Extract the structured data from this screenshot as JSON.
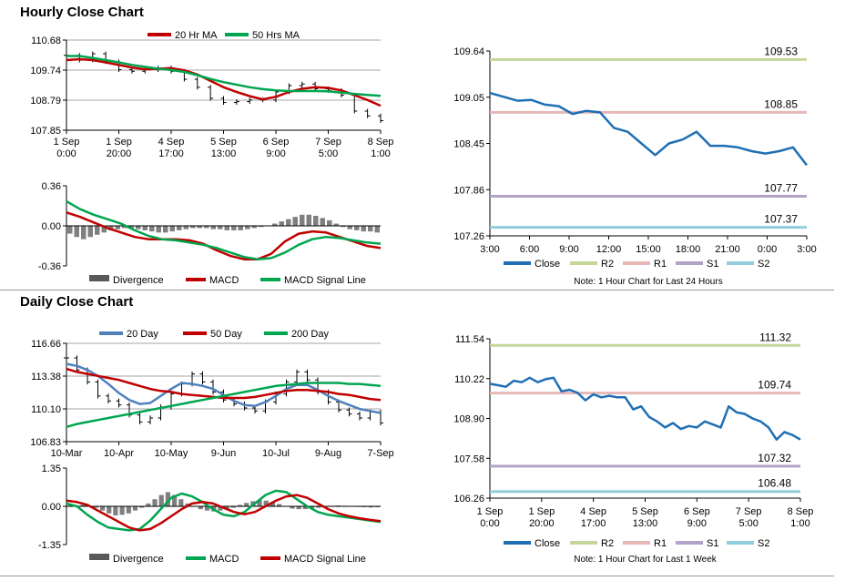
{
  "titles": {
    "hourly": "Hourly Close Chart",
    "daily": "Daily Close Chart"
  },
  "chart_data": [
    {
      "id": "hourly-price",
      "type": "line",
      "ylim": [
        107.85,
        110.68
      ],
      "yticks": [
        "110.68",
        "109.74",
        "108.79",
        "107.85"
      ],
      "xticks": [
        [
          "1 Sep",
          "0:00"
        ],
        [
          "1 Sep",
          "20:00"
        ],
        [
          "4 Sep",
          "17:00"
        ],
        [
          "5 Sep",
          "13:00"
        ],
        [
          "6 Sep",
          "9:00"
        ],
        [
          "7 Sep",
          "5:00"
        ],
        [
          "8 Sep",
          "1:00"
        ]
      ],
      "legend": [
        "20 Hr MA",
        "50 Hrs MA"
      ],
      "series": [
        {
          "name": "20 Hr MA",
          "color": "#c00000",
          "values": [
            110.05,
            110.08,
            110.05,
            109.98,
            109.9,
            109.82,
            109.76,
            109.78,
            109.8,
            109.73,
            109.6,
            109.4,
            109.2,
            109.05,
            108.92,
            108.82,
            108.9,
            109.05,
            109.15,
            109.2,
            109.18,
            109.1,
            108.95,
            108.8,
            108.62
          ]
        },
        {
          "name": "50 Hrs MA",
          "color": "#00a550",
          "values": [
            110.18,
            110.18,
            110.12,
            110.05,
            109.98,
            109.9,
            109.84,
            109.78,
            109.74,
            109.68,
            109.58,
            109.46,
            109.36,
            109.28,
            109.2,
            109.14,
            109.1,
            109.08,
            109.08,
            109.08,
            109.07,
            109.03,
            108.99,
            108.96,
            108.93
          ]
        },
        {
          "name": "Close",
          "color": "#000000",
          "values": [
            110.2,
            110.05,
            110.25,
            110.0,
            109.75,
            109.7,
            109.75,
            109.8,
            109.7,
            109.45,
            109.2,
            108.85,
            108.72,
            108.75,
            108.8,
            108.8,
            109.05,
            109.25,
            109.3,
            109.15,
            109.1,
            108.95,
            108.45,
            108.3,
            108.15
          ]
        }
      ]
    },
    {
      "id": "hourly-macd",
      "type": "bar",
      "ylim": [
        -0.36,
        0.36
      ],
      "yticks": [
        "0.36",
        "0.00",
        "-0.36"
      ],
      "legend": [
        "Divergence",
        "MACD",
        "MACD Signal Line"
      ],
      "divergence": [
        -0.07,
        -0.1,
        -0.12,
        -0.1,
        -0.08,
        -0.06,
        -0.04,
        -0.03,
        -0.02,
        -0.02,
        -0.03,
        -0.04,
        -0.05,
        -0.06,
        -0.06,
        -0.05,
        -0.04,
        -0.03,
        -0.02,
        -0.02,
        -0.02,
        -0.03,
        -0.03,
        -0.04,
        -0.04,
        -0.04,
        -0.03,
        -0.02,
        -0.01,
        0.0,
        0.02,
        0.04,
        0.06,
        0.08,
        0.1,
        0.1,
        0.09,
        0.07,
        0.05,
        0.02,
        -0.01,
        -0.03,
        -0.04,
        -0.05,
        -0.05,
        -0.06
      ],
      "series": [
        {
          "name": "MACD",
          "color": "#c00000",
          "values": [
            0.12,
            0.08,
            0.03,
            -0.02,
            -0.06,
            -0.1,
            -0.12,
            -0.12,
            -0.12,
            -0.13,
            -0.16,
            -0.22,
            -0.27,
            -0.3,
            -0.3,
            -0.25,
            -0.14,
            -0.07,
            -0.05,
            -0.06,
            -0.1,
            -0.14,
            -0.18,
            -0.2
          ]
        },
        {
          "name": "MACD Signal Line",
          "color": "#00a550",
          "values": [
            0.22,
            0.15,
            0.1,
            0.06,
            0.02,
            -0.04,
            -0.09,
            -0.12,
            -0.13,
            -0.15,
            -0.17,
            -0.2,
            -0.24,
            -0.28,
            -0.3,
            -0.29,
            -0.24,
            -0.17,
            -0.12,
            -0.1,
            -0.11,
            -0.13,
            -0.15,
            -0.16
          ]
        }
      ]
    },
    {
      "id": "hourly-24h",
      "type": "line",
      "ylim": [
        107.26,
        109.64
      ],
      "yticks": [
        "109.64",
        "109.05",
        "108.45",
        "107.86",
        "107.26"
      ],
      "xticks": [
        "3:00",
        "6:00",
        "9:00",
        "12:00",
        "15:00",
        "18:00",
        "21:00",
        "0:00",
        "3:00"
      ],
      "levels": [
        {
          "name": "R2",
          "value": 109.53,
          "label": "109.53",
          "color": "#c4d79b"
        },
        {
          "name": "R1",
          "value": 108.85,
          "label": "108.85",
          "color": "#e6b9b8"
        },
        {
          "name": "S1",
          "value": 107.77,
          "label": "107.77",
          "color": "#b3a2c7"
        },
        {
          "name": "S2",
          "value": 107.37,
          "label": "107.37",
          "color": "#93cddd"
        }
      ],
      "series": [
        {
          "name": "Close",
          "color": "#1f6fb4",
          "values": [
            109.1,
            109.05,
            109.0,
            109.01,
            108.95,
            108.93,
            108.83,
            108.87,
            108.85,
            108.65,
            108.6,
            108.45,
            108.3,
            108.45,
            108.5,
            108.6,
            108.42,
            108.42,
            108.4,
            108.35,
            108.32,
            108.35,
            108.4,
            108.17
          ]
        }
      ],
      "legend": [
        "Close",
        "R2",
        "R1",
        "S1",
        "S2"
      ],
      "note": "Note: 1 Hour Chart for Last 24 Hours"
    },
    {
      "id": "daily-price",
      "type": "line",
      "ylim": [
        106.83,
        116.66
      ],
      "yticks": [
        "116.66",
        "113.38",
        "110.10",
        "106.83"
      ],
      "xticks": [
        "10-Mar",
        "10-Apr",
        "10-May",
        "9-Jun",
        "10-Jul",
        "9-Aug",
        "7-Sep"
      ],
      "legend": [
        "20 Day",
        "50 Day",
        "200 Day"
      ],
      "series": [
        {
          "name": "20 Day",
          "color": "#4f81bd",
          "values": [
            114.6,
            114.4,
            114.0,
            113.4,
            112.6,
            111.7,
            111.0,
            110.6,
            110.7,
            111.4,
            112.1,
            112.7,
            112.6,
            112.4,
            112.1,
            111.5,
            110.9,
            110.5,
            110.4,
            110.8,
            111.4,
            112.1,
            112.5,
            112.5,
            112.0,
            111.4,
            110.9,
            110.5,
            110.1,
            109.9,
            109.7
          ]
        },
        {
          "name": "50 Day",
          "color": "#c00000",
          "values": [
            114.1,
            113.8,
            113.6,
            113.4,
            113.2,
            113.0,
            112.7,
            112.4,
            112.1,
            111.9,
            111.8,
            111.6,
            111.5,
            111.4,
            111.3,
            111.2,
            111.2,
            111.2,
            111.3,
            111.5,
            111.7,
            111.9,
            112.0,
            112.0,
            111.9,
            111.8,
            111.6,
            111.5,
            111.3,
            111.1,
            111.0
          ]
        },
        {
          "name": "200 Day",
          "color": "#00a550",
          "values": [
            108.3,
            108.6,
            108.8,
            109.0,
            109.2,
            109.4,
            109.6,
            109.8,
            110.0,
            110.2,
            110.4,
            110.6,
            110.8,
            111.0,
            111.2,
            111.4,
            111.6,
            111.8,
            112.0,
            112.2,
            112.4,
            112.5,
            112.6,
            112.7,
            112.7,
            112.7,
            112.7,
            112.6,
            112.6,
            112.5,
            112.4
          ]
        },
        {
          "name": "Close",
          "color": "#000000",
          "values": [
            115.2,
            114.0,
            112.8,
            111.4,
            110.9,
            110.5,
            109.5,
            108.8,
            109.2,
            110.3,
            111.6,
            112.6,
            113.6,
            112.8,
            111.8,
            111.0,
            110.6,
            110.2,
            109.9,
            110.8,
            111.6,
            112.8,
            113.8,
            113.0,
            111.8,
            110.8,
            110.0,
            109.6,
            109.2,
            109.8,
            108.7
          ]
        }
      ]
    },
    {
      "id": "daily-macd",
      "type": "bar",
      "ylim": [
        -1.35,
        1.35
      ],
      "yticks": [
        "1.35",
        "0.00",
        "-1.35"
      ],
      "legend": [
        "Divergence",
        "MACD",
        "MACD Signal Line"
      ],
      "divergence": [
        0.02,
        0.03,
        0.05,
        0.02,
        -0.05,
        -0.15,
        -0.25,
        -0.32,
        -0.3,
        -0.25,
        -0.15,
        -0.05,
        0.1,
        0.25,
        0.4,
        0.5,
        0.4,
        0.25,
        0.1,
        0.0,
        -0.1,
        -0.15,
        -0.18,
        -0.15,
        -0.1,
        -0.05,
        0.05,
        0.12,
        0.18,
        0.22,
        0.2,
        0.15,
        0.08,
        0.0,
        -0.08,
        -0.1,
        -0.1,
        -0.08,
        -0.05,
        -0.02,
        0.02,
        0.03,
        0.02,
        0.0,
        -0.02,
        -0.03,
        -0.04,
        -0.03
      ],
      "series": [
        {
          "name": "MACD",
          "color": "#00a550",
          "values": [
            0.1,
            0.0,
            -0.3,
            -0.55,
            -0.75,
            -0.8,
            -0.85,
            -0.8,
            -0.5,
            -0.1,
            0.3,
            0.45,
            0.35,
            0.15,
            -0.1,
            -0.3,
            -0.35,
            -0.2,
            0.1,
            0.4,
            0.55,
            0.5,
            0.25,
            0.0,
            -0.2,
            -0.3,
            -0.35,
            -0.4,
            -0.45,
            -0.5,
            -0.55
          ]
        },
        {
          "name": "MACD Signal Line",
          "color": "#c00000",
          "values": [
            0.2,
            0.15,
            0.05,
            -0.15,
            -0.35,
            -0.55,
            -0.75,
            -0.85,
            -0.8,
            -0.6,
            -0.35,
            -0.1,
            0.1,
            0.15,
            0.1,
            -0.05,
            -0.2,
            -0.28,
            -0.2,
            0.0,
            0.2,
            0.35,
            0.4,
            0.3,
            0.1,
            -0.1,
            -0.25,
            -0.35,
            -0.42,
            -0.48,
            -0.52
          ]
        }
      ]
    },
    {
      "id": "daily-week",
      "type": "line",
      "ylim": [
        106.26,
        111.54
      ],
      "yticks": [
        "111.54",
        "110.22",
        "108.90",
        "107.58",
        "106.26"
      ],
      "xticks": [
        [
          "1 Sep",
          "0:00"
        ],
        [
          "1 Sep",
          "20:00"
        ],
        [
          "4 Sep",
          "17:00"
        ],
        [
          "5 Sep",
          "13:00"
        ],
        [
          "6 Sep",
          "9:00"
        ],
        [
          "7 Sep",
          "5:00"
        ],
        [
          "8 Sep",
          "1:00"
        ]
      ],
      "levels": [
        {
          "name": "R2",
          "value": 111.32,
          "label": "111.32",
          "color": "#c4d79b"
        },
        {
          "name": "R1",
          "value": 109.74,
          "label": "109.74",
          "color": "#e6b9b8"
        },
        {
          "name": "S1",
          "value": 107.32,
          "label": "107.32",
          "color": "#b3a2c7"
        },
        {
          "name": "S2",
          "value": 106.48,
          "label": "106.48",
          "color": "#93cddd"
        }
      ],
      "series": [
        {
          "name": "Close",
          "color": "#1f6fb4",
          "values": [
            110.05,
            110.0,
            109.95,
            110.15,
            110.1,
            110.25,
            110.1,
            110.2,
            110.25,
            109.8,
            109.85,
            109.75,
            109.5,
            109.7,
            109.6,
            109.65,
            109.6,
            109.6,
            109.2,
            109.3,
            108.95,
            108.8,
            108.6,
            108.75,
            108.55,
            108.65,
            108.6,
            108.8,
            108.7,
            108.6,
            109.3,
            109.1,
            109.05,
            108.9,
            108.8,
            108.6,
            108.2,
            108.45,
            108.35,
            108.2
          ]
        }
      ],
      "legend": [
        "Close",
        "R2",
        "R1",
        "S1",
        "S2"
      ],
      "note": "Note: 1 Hour Chart for Last 1 Week"
    }
  ]
}
